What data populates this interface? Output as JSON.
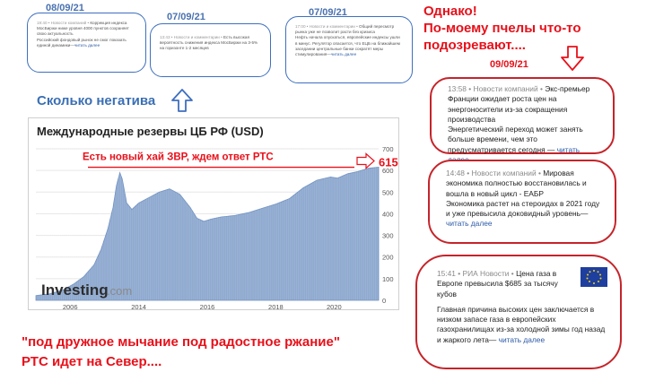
{
  "dates": {
    "d1": "08/09/21",
    "d2": "07/09/21",
    "d3": "07/09/21",
    "d4": "09/09/21"
  },
  "captions": {
    "negativity": "Сколько негатива",
    "however_line1": "Однако!",
    "however_line2": "По-моему пчелы что-то",
    "however_line3": "подозревают....",
    "bottom_line1": "\"под дружное мычание под радостное ржание\"",
    "bottom_line2": "РТС идет на Север...."
  },
  "small_news": [
    {
      "meta": "19:40 • Новости компаний • ",
      "text": "Коррекция индекса МосБиржи ниже уровня 4000 пунктов сохраняет свою актуальность",
      "text2": "Российский фондовый рынок не смог показать единой динамики—",
      "more": "читать далее"
    },
    {
      "meta": "13:43 • Новости и комментарии • ",
      "text": "Есть высокая вероятность снижения индекса МосБиржи на 3-5% на горизонте 1-2 месяцев",
      "text2": "",
      "more": ""
    },
    {
      "meta": "17:00 • Новости и комментарии • ",
      "text": "Общий пересмотр рынка уже не позволит расти без кризиса",
      "text2": "Нефть начала опускаться, европейские индексы ушли в минус. Регулятор опасается, что ЕЦБ на ближайшем заседании центральные банки сократят меры стимулирования—",
      "more": "читать далее"
    }
  ],
  "red_news": [
    {
      "meta": "13:58 • Новости компаний • ",
      "headline": "Экс-премьер Франции ожидает роста цен на энергоносители из-за сокращения производства",
      "body": "Энергетический переход может занять больше времени, чем это предусматривается сегодня —",
      "more": "читать далее"
    },
    {
      "meta": "14:48 • Новости компаний • ",
      "headline": "Мировая экономика полностью восстановилась и вошла в новый цикл - ЕАБР",
      "body": "Экономика растет на стероидах в 2021 году и уже превысила доковидный уровень—",
      "more": "читать далее"
    },
    {
      "meta": "15:41 • РИА Новости • ",
      "headline": "Цена газа в Европе превысила $685 за тысячу кубов",
      "body": "Главная причина высоких цен заключается в низком запасе газа в европейских газохранилищах из-за холодной зимы год назад и жаркого лета—",
      "more": "читать далее"
    }
  ],
  "chart_data": {
    "type": "area",
    "title": "Международные резервы ЦБ РФ (USD)",
    "annotation": "Есть новый хай ЗВР, ждем ответ РТС",
    "annotation_value": "615",
    "watermark": "Investing.com",
    "x_ticks": [
      "2006",
      "2014",
      "2016",
      "2018",
      "2020"
    ],
    "y_ticks": [
      0,
      100,
      200,
      300,
      400,
      500,
      600,
      700
    ],
    "ylim": [
      0,
      700
    ],
    "x_domain": [
      0,
      100
    ],
    "color": "#8ea9cf",
    "points": [
      {
        "x": 0,
        "y": 22
      },
      {
        "x": 4,
        "y": 30
      },
      {
        "x": 8,
        "y": 48
      },
      {
        "x": 11,
        "y": 75
      },
      {
        "x": 14,
        "y": 110
      },
      {
        "x": 17,
        "y": 165
      },
      {
        "x": 19,
        "y": 235
      },
      {
        "x": 21,
        "y": 330
      },
      {
        "x": 22.5,
        "y": 430
      },
      {
        "x": 23.5,
        "y": 530
      },
      {
        "x": 24.5,
        "y": 590
      },
      {
        "x": 25.2,
        "y": 560
      },
      {
        "x": 26.5,
        "y": 450
      },
      {
        "x": 28,
        "y": 420
      },
      {
        "x": 30,
        "y": 450
      },
      {
        "x": 33,
        "y": 475
      },
      {
        "x": 36,
        "y": 500
      },
      {
        "x": 39,
        "y": 515
      },
      {
        "x": 42,
        "y": 490
      },
      {
        "x": 45,
        "y": 430
      },
      {
        "x": 47,
        "y": 380
      },
      {
        "x": 49,
        "y": 365
      },
      {
        "x": 51,
        "y": 375
      },
      {
        "x": 54,
        "y": 385
      },
      {
        "x": 58,
        "y": 392
      },
      {
        "x": 62,
        "y": 405
      },
      {
        "x": 66,
        "y": 425
      },
      {
        "x": 70,
        "y": 445
      },
      {
        "x": 74,
        "y": 470
      },
      {
        "x": 78,
        "y": 520
      },
      {
        "x": 82,
        "y": 555
      },
      {
        "x": 86,
        "y": 570
      },
      {
        "x": 88,
        "y": 565
      },
      {
        "x": 91,
        "y": 585
      },
      {
        "x": 94,
        "y": 595
      },
      {
        "x": 97,
        "y": 610
      },
      {
        "x": 100,
        "y": 615
      }
    ]
  }
}
